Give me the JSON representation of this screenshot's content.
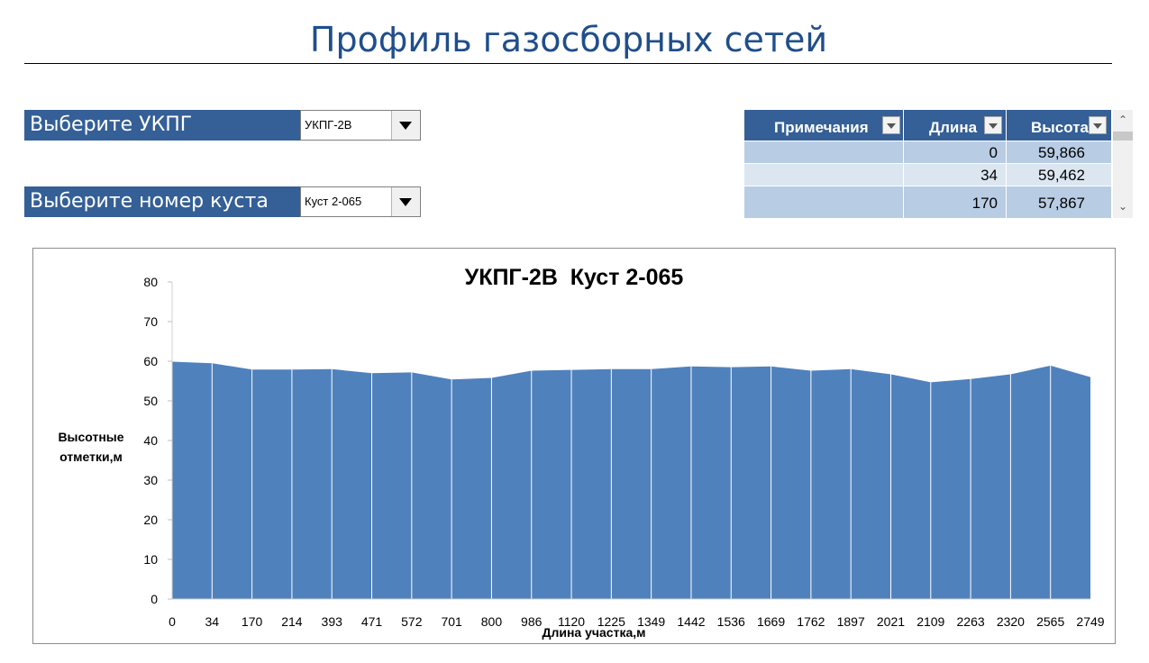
{
  "header": {
    "title": "Профиль газосборных сетей"
  },
  "selectors": [
    {
      "label": "Выберите УКПГ",
      "value": "УКПГ-2В"
    },
    {
      "label": "Выберите номер куста",
      "value": "Куст 2-065"
    }
  ],
  "table": {
    "columns": [
      "Примечания",
      "Длина",
      "Высота"
    ],
    "rows": [
      {
        "note": "",
        "length": "0",
        "height": "59,866"
      },
      {
        "note": "",
        "length": "34",
        "height": "59,462"
      },
      {
        "note": "",
        "length": "170",
        "height": "57,867"
      }
    ]
  },
  "colors": {
    "accent": "#345f97",
    "area": "#4f81bd",
    "row_a": "#b8cce4",
    "row_b": "#dce6f1",
    "title": "#1f4e8c"
  },
  "chart_data": {
    "type": "area",
    "title": "УКПГ-2В  Куст 2-065",
    "xlabel": "Длина участка,м",
    "ylabel": "Высотные отметки,м",
    "categories": [
      "0",
      "34",
      "170",
      "214",
      "393",
      "471",
      "572",
      "701",
      "800",
      "986",
      "1120",
      "1225",
      "1349",
      "1442",
      "1536",
      "1669",
      "1762",
      "1897",
      "2021",
      "2109",
      "2263",
      "2320",
      "2565",
      "2749"
    ],
    "values": [
      59.9,
      59.5,
      57.9,
      57.9,
      58.0,
      57.0,
      57.2,
      55.4,
      55.8,
      57.6,
      57.8,
      58.0,
      58.0,
      58.7,
      58.5,
      58.7,
      57.6,
      58.0,
      56.7,
      54.7,
      55.5,
      56.7,
      58.9,
      56.0
    ],
    "yticks": [
      "0",
      "10",
      "20",
      "30",
      "40",
      "50",
      "60",
      "70",
      "80"
    ],
    "ylim": [
      0,
      80
    ],
    "grid": false,
    "legend": "none"
  }
}
